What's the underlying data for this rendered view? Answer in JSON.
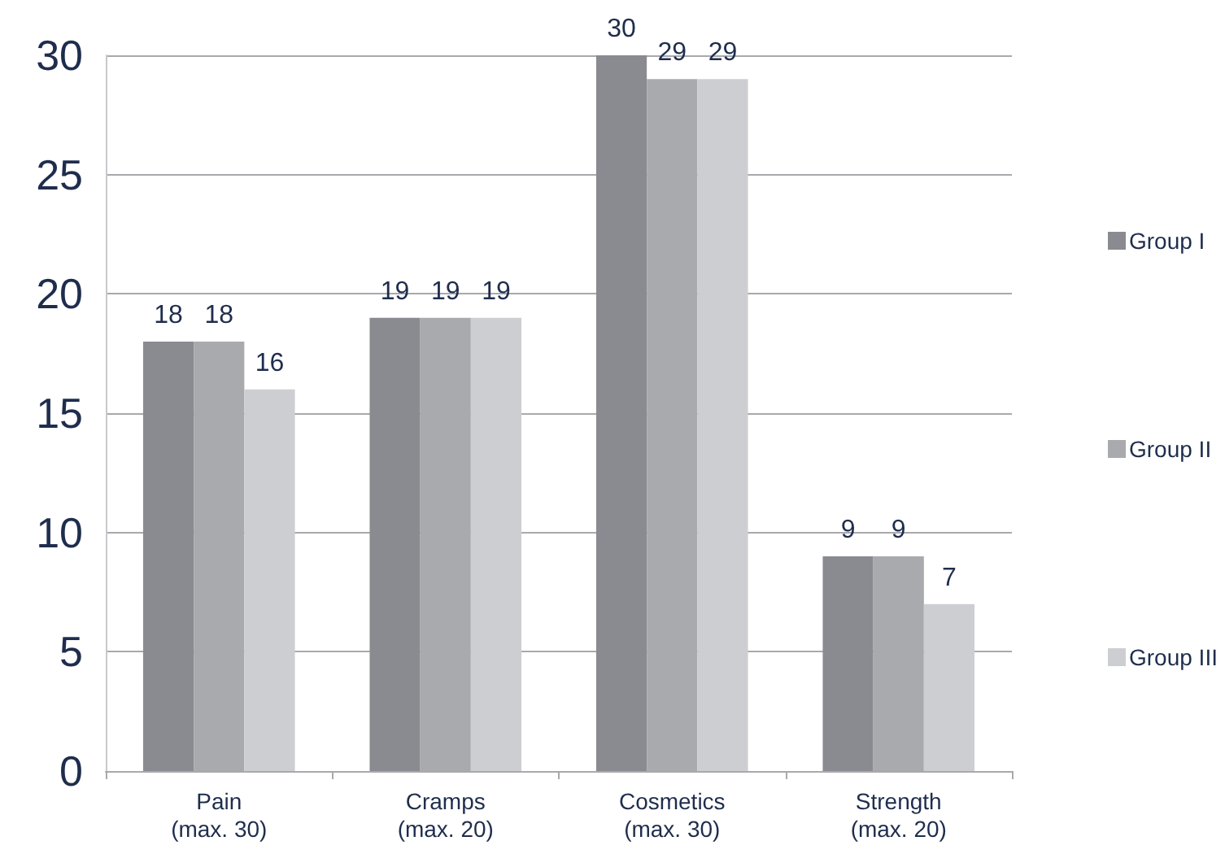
{
  "chart_data": {
    "type": "bar",
    "categories": [
      "Pain\n(max. 30)",
      "Cramps\n(max. 20)",
      "Cosmetics\n(max. 30)",
      "Strength\n(max. 20)"
    ],
    "series": [
      {
        "name": "Group I",
        "color": "#8a8b90",
        "values": [
          18,
          19,
          30,
          9
        ]
      },
      {
        "name": "Group II",
        "color": "#a9aaae",
        "values": [
          18,
          19,
          29,
          9
        ]
      },
      {
        "name": "Group III",
        "color": "#cdced2",
        "values": [
          16,
          19,
          29,
          7
        ]
      }
    ],
    "ylim": [
      0,
      30
    ],
    "yticks": [
      0,
      5,
      10,
      15,
      20,
      25,
      30
    ],
    "grid": "y",
    "legend": "right",
    "data_labels": true
  }
}
